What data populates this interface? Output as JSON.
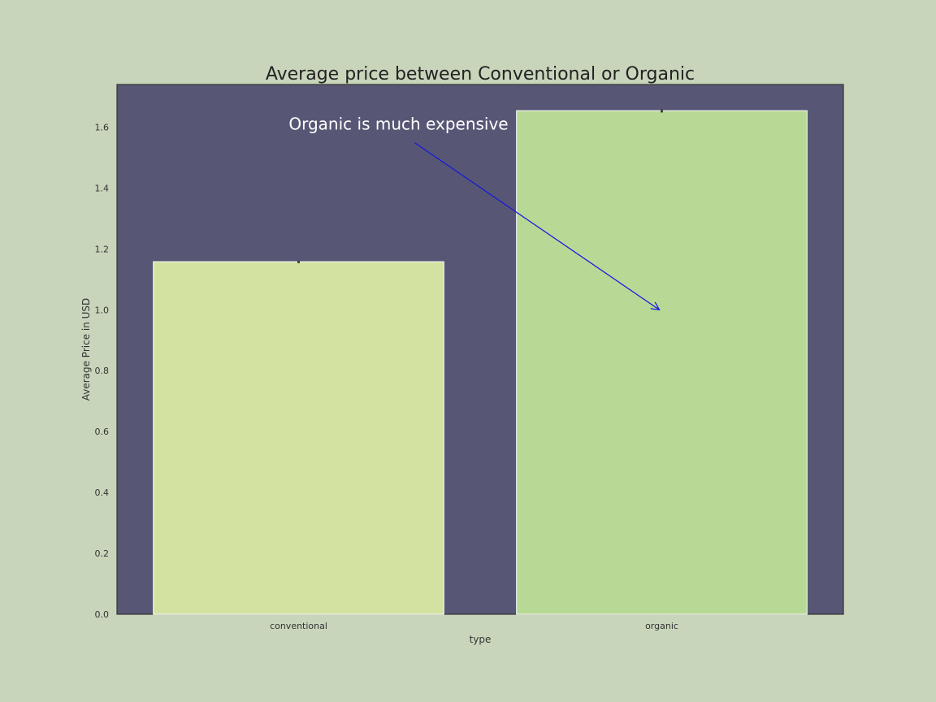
{
  "colors": {
    "figure_bg": "#c8d5bb",
    "plot_bg": "#575775",
    "bar_colors": [
      "#d3e2a0",
      "#b7d995"
    ],
    "bar_edge": "#ffffff",
    "errorbar": "#444444",
    "arrow": "#1515e0",
    "annotation_text": "#ffffff"
  },
  "chart_data": {
    "type": "bar",
    "title": "Average price between Conventional or Organic",
    "xlabel": "type",
    "ylabel": "Average Price in USD",
    "categories": [
      "conventional",
      "organic"
    ],
    "values": [
      1.158,
      1.654
    ],
    "error_bars": [
      [
        1.153,
        1.162
      ],
      [
        1.648,
        1.66
      ]
    ],
    "ylim": [
      0,
      1.74
    ],
    "yticks": [
      "0.0",
      "0.2",
      "0.4",
      "0.6",
      "0.8",
      "1.0",
      "1.2",
      "1.4",
      "1.6"
    ],
    "grid": false,
    "annotation": {
      "text": "Organic is much expensive",
      "text_at": {
        "category": "conventional",
        "y": 1.61
      },
      "arrow_to": {
        "category": "organic",
        "y": 1.0
      }
    }
  }
}
